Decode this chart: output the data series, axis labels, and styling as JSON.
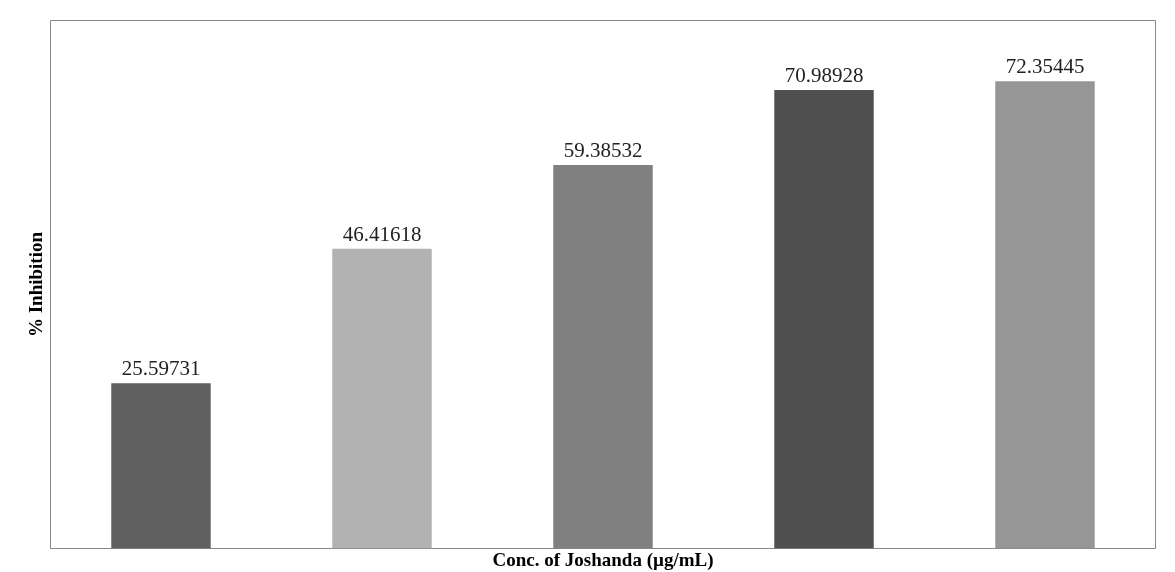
{
  "chart_data": {
    "type": "bar",
    "categories": [
      null,
      null,
      null,
      null,
      null
    ],
    "values": [
      25.59731,
      46.41618,
      59.38532,
      70.98928,
      72.35445
    ],
    "colors": [
      "#606060",
      "#b2b2b2",
      "#808080",
      "#505050",
      "#969696"
    ],
    "xlabel": "Conc. of Joshanda (µg/mL)",
    "ylabel": "% Inhibition",
    "data_labels": true
  }
}
